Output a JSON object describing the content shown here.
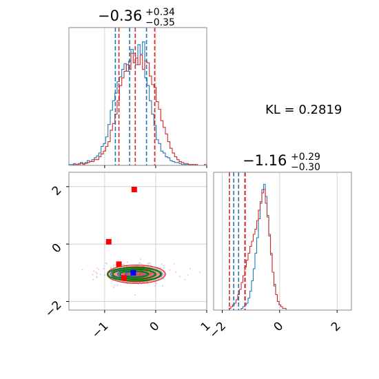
{
  "kl_label": "KL = 0.2819",
  "colors": {
    "blue": "#1f77b4",
    "red": "#d62728",
    "green": "#008000",
    "grid": "#c8c8c8",
    "frame": "#888888",
    "marker_red": "#ff0000",
    "marker_blue": "#0000ff"
  },
  "chart_data": [
    {
      "type": "histogram",
      "panel": "marginal-param-1",
      "title_main": "−0.36",
      "title_plus": "+0.34",
      "title_minus": "−0.35",
      "xlim": [
        -1.7,
        1.0
      ],
      "ymax": 145,
      "bins": [
        -1.7,
        1.0,
        60
      ],
      "series": [
        {
          "color": "blue",
          "counts": [
            1,
            1,
            2,
            1,
            2,
            3,
            2,
            3,
            5,
            4,
            6,
            8,
            10,
            13,
            20,
            23,
            30,
            43,
            58,
            68,
            76,
            88,
            93,
            101,
            107,
            99,
            110,
            122,
            118,
            106,
            127,
            117,
            130,
            92,
            84,
            68,
            54,
            42,
            27,
            23,
            15,
            13,
            9,
            8,
            5,
            4,
            3,
            3,
            2,
            1,
            1,
            1,
            1,
            0,
            1,
            0,
            0,
            0,
            0,
            0
          ],
          "quantiles": [
            -0.79,
            -0.51,
            -0.18
          ]
        },
        {
          "color": "red",
          "counts": [
            0,
            0,
            1,
            1,
            1,
            2,
            1,
            2,
            3,
            4,
            4,
            6,
            6,
            9,
            12,
            15,
            20,
            25,
            37,
            44,
            54,
            68,
            84,
            92,
            99,
            106,
            101,
            118,
            108,
            113,
            106,
            116,
            101,
            110,
            108,
            94,
            85,
            82,
            67,
            59,
            47,
            40,
            33,
            25,
            18,
            13,
            9,
            6,
            4,
            3,
            2,
            2,
            1,
            1,
            0,
            1,
            0,
            0,
            0,
            1
          ],
          "quantiles": [
            -0.72,
            -0.4,
            -0.02
          ]
        }
      ]
    },
    {
      "type": "histogram",
      "panel": "marginal-param-2",
      "title_main": "−1.16",
      "title_plus": "+0.29",
      "title_minus": "−0.30",
      "xlim": [
        -2.3,
        2.5
      ],
      "ymax": 80,
      "bins": [
        -2.3,
        2.5,
        80
      ],
      "series": [
        {
          "color": "blue",
          "counts": [
            0,
            0,
            0,
            0,
            0,
            0,
            0,
            0,
            0,
            0,
            0,
            0,
            0,
            0,
            0,
            0,
            1,
            2,
            3,
            4,
            7,
            11,
            17,
            24,
            33,
            42,
            53,
            63,
            70,
            73,
            66,
            55,
            44,
            33,
            22,
            15,
            9,
            5,
            3,
            2,
            1,
            1,
            0,
            0,
            0,
            0,
            0,
            0,
            0,
            0,
            0,
            0,
            0,
            0,
            0,
            0,
            0,
            0,
            0,
            0,
            0,
            0,
            0,
            0,
            0,
            0,
            0,
            0,
            0,
            0,
            0,
            0,
            0,
            0,
            0,
            0,
            0,
            0,
            0,
            0
          ],
          "quantiles": [
            -1.6,
            -1.43,
            -1.21
          ]
        },
        {
          "color": "red",
          "counts": [
            0,
            0,
            0,
            0,
            0,
            0,
            0,
            0,
            0,
            1,
            2,
            3,
            4,
            6,
            9,
            12,
            16,
            20,
            25,
            29,
            33,
            37,
            40,
            44,
            47,
            52,
            58,
            62,
            68,
            70,
            62,
            54,
            43,
            32,
            22,
            14,
            9,
            5,
            3,
            2,
            1,
            1,
            0,
            0,
            0,
            0,
            0,
            0,
            0,
            0,
            0,
            0,
            0,
            0,
            0,
            0,
            0,
            0,
            0,
            0,
            0,
            0,
            0,
            0,
            0,
            0,
            0,
            0,
            0,
            0,
            0,
            0,
            0,
            0,
            0,
            0,
            0,
            0,
            0,
            0
          ],
          "quantiles": [
            -1.75,
            -1.21,
            -1.2
          ]
        }
      ]
    },
    {
      "type": "scatter",
      "panel": "joint-param-1-param-2",
      "xlim": [
        -1.7,
        1.0
      ],
      "ylim": [
        -2.3,
        2.5
      ],
      "xticks": [
        -1,
        0,
        1
      ],
      "yticks": [
        -2,
        0,
        2
      ],
      "x_tick_labels": [
        "−1",
        "0",
        "1"
      ],
      "y_tick_labels": [
        "−2",
        "0",
        "2"
      ],
      "contours": {
        "center": [
          -0.38,
          -1.05
        ],
        "red_filled": {
          "rx": [
            0.57,
            0.47,
            0.36,
            0.22
          ],
          "ry": [
            0.32,
            0.26,
            0.19,
            0.12
          ]
        },
        "blue": {
          "rx": [
            0.5,
            0.36,
            0.21
          ],
          "ry": [
            0.23,
            0.16,
            0.09
          ]
        },
        "green": {
          "center": [
            -0.42,
            -1.05
          ],
          "rx": [
            0.52,
            0.42,
            0.28
          ],
          "ry": [
            0.23,
            0.17,
            0.11
          ]
        }
      },
      "markers": [
        {
          "x": -0.42,
          "y": 1.9,
          "color": "marker_red"
        },
        {
          "x": -0.92,
          "y": 0.08,
          "color": "marker_red"
        },
        {
          "x": -0.72,
          "y": -0.7,
          "color": "marker_red"
        },
        {
          "x": -0.62,
          "y": -1.18,
          "color": "marker_red"
        },
        {
          "x": -0.44,
          "y": -1.0,
          "color": "marker_blue"
        }
      ]
    },
    {
      "type": "axis",
      "panel": "marginal-param-2-xaxis",
      "xticks": [
        -2,
        0,
        2
      ],
      "x_tick_labels": [
        "−2",
        "0",
        "2"
      ]
    }
  ]
}
